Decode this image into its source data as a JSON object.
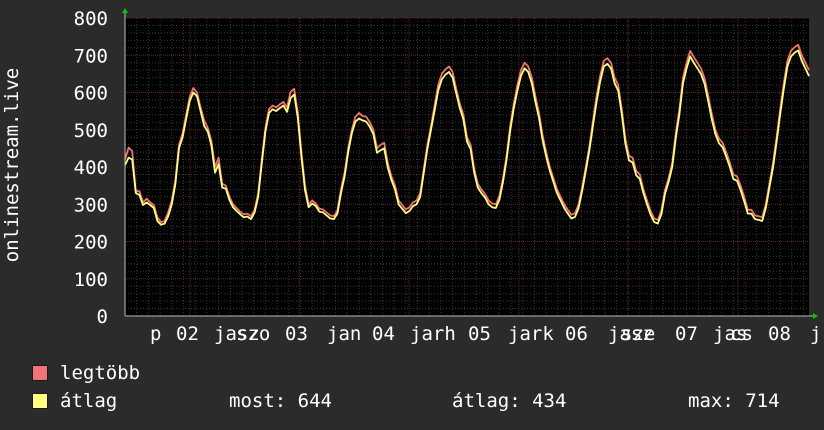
{
  "chart_data": {
    "type": "line",
    "ylabel": "onlinestream.live",
    "ylim": [
      0,
      800
    ],
    "yticks": [
      0,
      100,
      200,
      300,
      400,
      500,
      600,
      700,
      800
    ],
    "xticklabels": [
      "p",
      "02",
      "jasz",
      "szo",
      "03",
      "jan",
      "04",
      "jarh",
      "05",
      "jark",
      "06",
      "jasz",
      "sze",
      "07",
      "jas",
      "cs",
      "08",
      "j"
    ],
    "grid": true,
    "colors": {
      "background": "#000000",
      "grid_major": "#5a2626",
      "grid_minor": "#3a3a3a",
      "axis_arrow": "#00cc00",
      "max_line": "#f07474",
      "avg_line": "#ffff80"
    },
    "series": [
      {
        "name": "legtöbb",
        "color": "#f07474",
        "values": [
          420,
          452,
          443,
          335,
          335,
          305,
          315,
          305,
          298,
          265,
          252,
          255,
          278,
          310,
          365,
          460,
          490,
          540,
          590,
          612,
          600,
          560,
          525,
          505,
          470,
          400,
          425,
          355,
          350,
          320,
          300,
          290,
          280,
          273,
          275,
          268,
          285,
          330,
          420,
          505,
          555,
          565,
          560,
          568,
          575,
          560,
          602,
          610,
          545,
          440,
          350,
          300,
          310,
          302,
          288,
          286,
          278,
          270,
          268,
          283,
          340,
          385,
          450,
          500,
          535,
          545,
          537,
          535,
          520,
          500,
          450,
          460,
          465,
          410,
          375,
          350,
          310,
          298,
          286,
          292,
          305,
          310,
          330,
          395,
          460,
          510,
          565,
          620,
          650,
          662,
          670,
          655,
          610,
          570,
          540,
          480,
          460,
          395,
          355,
          340,
          328,
          310,
          302,
          300,
          322,
          370,
          430,
          510,
          570,
          620,
          660,
          680,
          670,
          640,
          590,
          545,
          485,
          440,
          400,
          370,
          340,
          320,
          300,
          285,
          272,
          276,
          300,
          346,
          400,
          455,
          525,
          590,
          645,
          685,
          692,
          680,
          640,
          620,
          555,
          475,
          430,
          425,
          390,
          380,
          340,
          310,
          282,
          262,
          258,
          283,
          338,
          370,
          410,
          490,
          555,
          640,
          680,
          712,
          695,
          680,
          665,
          638,
          592,
          542,
          500,
          476,
          465,
          440,
          412,
          380,
          375,
          350,
          320,
          285,
          285,
          270,
          268,
          265,
          300,
          355,
          410,
          480,
          555,
          625,
          685,
          712,
          722,
          728,
          700,
          680,
          660
        ]
      },
      {
        "name": "átlag",
        "color": "#ffff80",
        "values": [
          405,
          425,
          420,
          330,
          325,
          298,
          305,
          298,
          290,
          255,
          245,
          248,
          268,
          300,
          355,
          450,
          480,
          530,
          578,
          600,
          590,
          550,
          510,
          495,
          458,
          385,
          408,
          345,
          342,
          312,
          292,
          282,
          273,
          265,
          267,
          260,
          278,
          320,
          410,
          495,
          545,
          555,
          550,
          558,
          565,
          548,
          585,
          595,
          532,
          428,
          338,
          292,
          302,
          295,
          280,
          278,
          270,
          262,
          260,
          275,
          330,
          375,
          440,
          490,
          522,
          530,
          525,
          522,
          508,
          488,
          438,
          445,
          450,
          398,
          365,
          340,
          300,
          288,
          276,
          282,
          295,
          300,
          320,
          385,
          450,
          500,
          552,
          605,
          635,
          648,
          655,
          640,
          598,
          558,
          528,
          468,
          448,
          385,
          345,
          330,
          318,
          300,
          292,
          290,
          312,
          360,
          420,
          498,
          558,
          605,
          645,
          665,
          655,
          625,
          575,
          532,
          472,
          428,
          390,
          360,
          330,
          310,
          290,
          275,
          262,
          266,
          290,
          336,
          390,
          445,
          512,
          575,
          630,
          670,
          677,
          665,
          625,
          605,
          542,
          462,
          418,
          412,
          378,
          368,
          330,
          300,
          272,
          252,
          248,
          273,
          328,
          360,
          400,
          478,
          542,
          625,
          665,
          697,
          680,
          665,
          650,
          623,
          577,
          528,
          488,
          464,
          453,
          428,
          400,
          368,
          363,
          338,
          308,
          275,
          275,
          260,
          258,
          255,
          290,
          345,
          398,
          468,
          542,
          610,
          670,
          697,
          707,
          713,
          685,
          665,
          644
        ]
      }
    ],
    "legend": [
      {
        "label": "legtöbb",
        "color": "#f07474"
      },
      {
        "label": "átlag",
        "color": "#ffff80"
      }
    ],
    "stats": {
      "most": "most: 644",
      "atlag": "átlag: 434",
      "max": "max: 714"
    }
  }
}
